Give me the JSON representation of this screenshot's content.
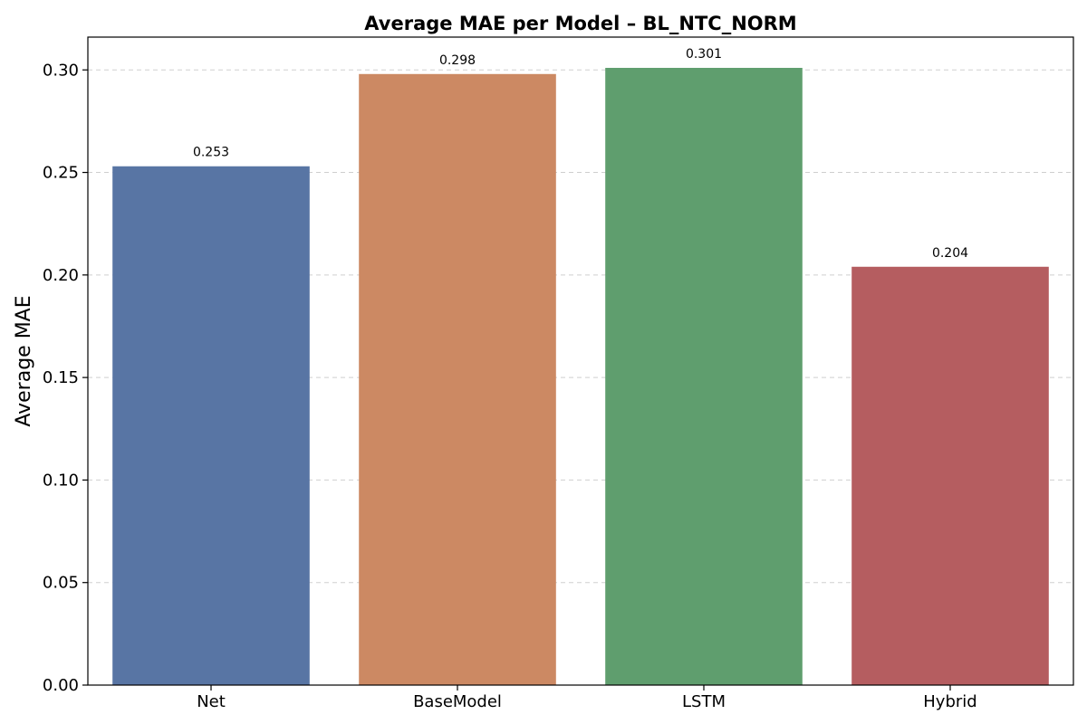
{
  "chart_data": {
    "type": "bar",
    "title": "Average MAE per Model – BL_NTC_NORM",
    "xlabel": "",
    "ylabel": "Average MAE",
    "categories": [
      "Net",
      "BaseModel",
      "LSTM",
      "Hybrid"
    ],
    "values": [
      0.253,
      0.298,
      0.301,
      0.204
    ],
    "data_labels": [
      "0.253",
      "0.298",
      "0.301",
      "0.204"
    ],
    "colors": [
      "#5875a4",
      "#cc8963",
      "#5f9e6e",
      "#b55d60"
    ],
    "ylim": [
      0,
      0.316
    ],
    "yticks": [
      0.0,
      0.05,
      0.1,
      0.15,
      0.2,
      0.25,
      0.3
    ],
    "ytick_labels": [
      "0.00",
      "0.05",
      "0.10",
      "0.15",
      "0.20",
      "0.25",
      "0.30"
    ],
    "grid": "y-dashed",
    "legend": "none"
  }
}
